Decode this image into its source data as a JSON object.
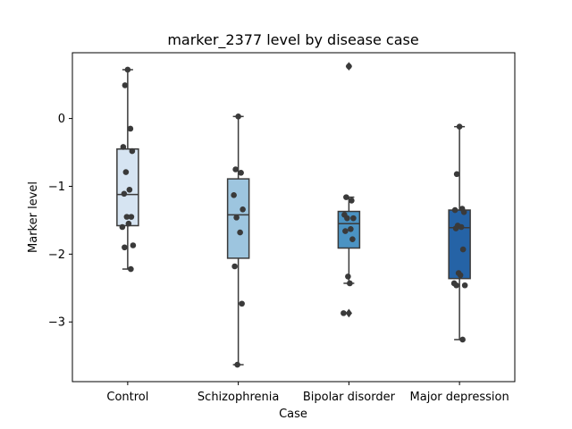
{
  "chart_data": {
    "type": "box",
    "title": "marker_2377 level by disease case",
    "xlabel": "Case",
    "ylabel": "Marker level",
    "ylim": [
      -3.88,
      0.97
    ],
    "yticks": [
      0,
      -1,
      -2,
      -3
    ],
    "ytick_labels": [
      "0",
      "−1",
      "−2",
      "−3"
    ],
    "categories": [
      "Control",
      "Schizophrenia",
      "Bipolar disorder",
      "Major depression"
    ],
    "colors": [
      "#d6e4f2",
      "#9dc5df",
      "#4b93c3",
      "#2563a6"
    ],
    "boxes": [
      {
        "category": "Control",
        "whislo": -2.22,
        "q1": -1.58,
        "med": -1.12,
        "q3": -0.45,
        "whishi": 0.72,
        "fliers": []
      },
      {
        "category": "Schizophrenia",
        "whislo": -3.63,
        "q1": -2.06,
        "med": -1.42,
        "q3": -0.89,
        "whishi": 0.03,
        "fliers": []
      },
      {
        "category": "Bipolar disorder",
        "whislo": -2.43,
        "q1": -1.91,
        "med": -1.55,
        "q3": -1.37,
        "whishi": -1.16,
        "fliers": [
          0.77,
          -2.87
        ]
      },
      {
        "category": "Major depression",
        "whislo": -3.26,
        "q1": -2.36,
        "med": -1.61,
        "q3": -1.35,
        "whishi": -0.12,
        "fliers": []
      }
    ],
    "points": [
      {
        "category": "Control",
        "values": [
          0.72,
          0.49,
          -0.15,
          -0.42,
          -0.48,
          -0.79,
          -1.05,
          -1.11,
          -1.45,
          -1.45,
          -1.55,
          -1.6,
          -1.87,
          -1.9,
          -2.22
        ]
      },
      {
        "category": "Schizophrenia",
        "values": [
          0.03,
          -0.75,
          -0.8,
          -1.13,
          -1.34,
          -1.46,
          -1.68,
          -2.18,
          -2.73,
          -3.63
        ]
      },
      {
        "category": "Bipolar disorder",
        "values": [
          0.77,
          -1.16,
          -1.21,
          -1.42,
          -1.47,
          -1.47,
          -1.63,
          -1.66,
          -1.78,
          -2.33,
          -2.43,
          -2.87
        ]
      },
      {
        "category": "Major depression",
        "values": [
          -0.12,
          -0.82,
          -1.33,
          -1.35,
          -1.38,
          -1.58,
          -1.6,
          -1.62,
          -1.93,
          -2.28,
          -2.31,
          -2.43,
          -2.46,
          -2.46,
          -3.26
        ]
      }
    ],
    "grid": false,
    "legend": "none"
  }
}
